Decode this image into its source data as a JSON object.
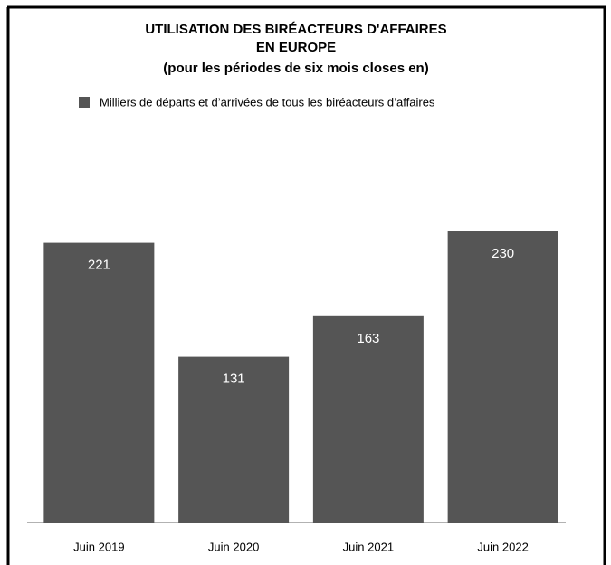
{
  "chart_data": {
    "type": "bar",
    "title": [
      "UTILISATION DES BIRÉACTEURS D'AFFAIRES",
      "EN EUROPE"
    ],
    "subtitle": "(pour les périodes de six mois closes en)",
    "categories": [
      "Juin 2019",
      "Juin 2020",
      "Juin 2021",
      "Juin 2022"
    ],
    "series": [
      {
        "name": "Milliers de départs et d’arrivées de tous les biréacteurs d’affaires",
        "color": "#555555",
        "values": [
          221,
          131,
          163,
          230
        ]
      }
    ]
  }
}
